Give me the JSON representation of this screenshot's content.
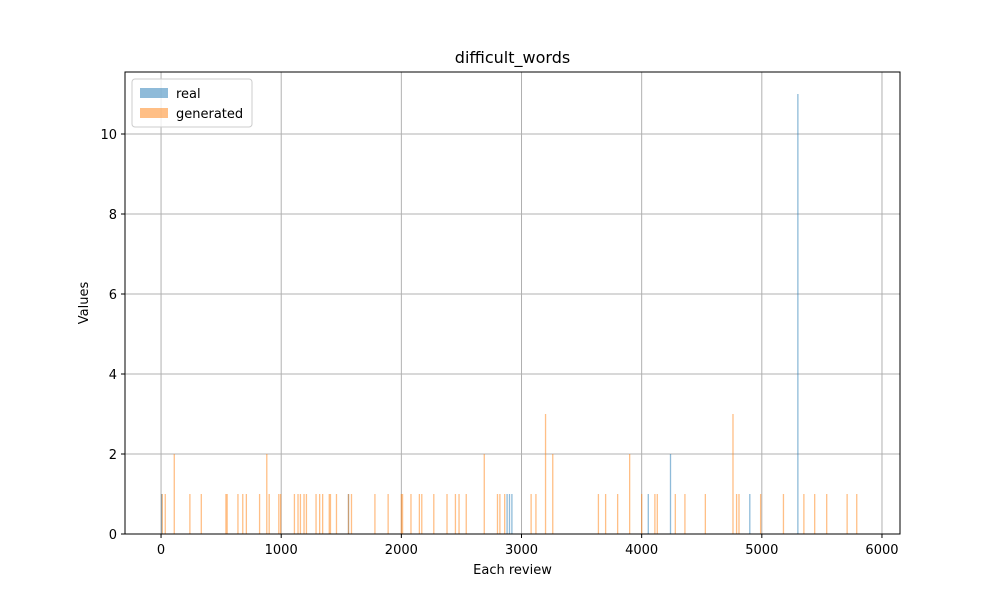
{
  "chart_data": {
    "type": "bar",
    "title": "difficult_words",
    "xlabel": "Each review",
    "ylabel": "Values",
    "xlim": [
      -300,
      6150
    ],
    "ylim": [
      0,
      11.55
    ],
    "xticks": [
      0,
      1000,
      2000,
      3000,
      4000,
      5000,
      6000
    ],
    "yticks": [
      0,
      2,
      4,
      6,
      8,
      10
    ],
    "grid": true,
    "legend_position": "top-left",
    "series": [
      {
        "name": "real",
        "color": "#1f77b4",
        "points": [
          {
            "x": 5,
            "y": 1
          },
          {
            "x": 1560,
            "y": 1
          },
          {
            "x": 2880,
            "y": 1
          },
          {
            "x": 2900,
            "y": 1
          },
          {
            "x": 2920,
            "y": 1
          },
          {
            "x": 4055,
            "y": 1
          },
          {
            "x": 4240,
            "y": 2
          },
          {
            "x": 4900,
            "y": 1
          },
          {
            "x": 5300,
            "y": 11
          }
        ]
      },
      {
        "name": "generated",
        "color": "#ff7f0e",
        "points": [
          {
            "x": 10,
            "y": 1
          },
          {
            "x": 35,
            "y": 1
          },
          {
            "x": 110,
            "y": 2
          },
          {
            "x": 240,
            "y": 1
          },
          {
            "x": 335,
            "y": 1
          },
          {
            "x": 540,
            "y": 1
          },
          {
            "x": 550,
            "y": 1
          },
          {
            "x": 640,
            "y": 1
          },
          {
            "x": 680,
            "y": 1
          },
          {
            "x": 710,
            "y": 1
          },
          {
            "x": 820,
            "y": 1
          },
          {
            "x": 880,
            "y": 2
          },
          {
            "x": 900,
            "y": 1
          },
          {
            "x": 980,
            "y": 1
          },
          {
            "x": 995,
            "y": 1
          },
          {
            "x": 1110,
            "y": 1
          },
          {
            "x": 1140,
            "y": 1
          },
          {
            "x": 1160,
            "y": 1
          },
          {
            "x": 1190,
            "y": 1
          },
          {
            "x": 1210,
            "y": 1
          },
          {
            "x": 1290,
            "y": 1
          },
          {
            "x": 1320,
            "y": 1
          },
          {
            "x": 1345,
            "y": 1
          },
          {
            "x": 1400,
            "y": 1
          },
          {
            "x": 1410,
            "y": 1
          },
          {
            "x": 1460,
            "y": 1
          },
          {
            "x": 1560,
            "y": 1
          },
          {
            "x": 1585,
            "y": 1
          },
          {
            "x": 1780,
            "y": 1
          },
          {
            "x": 1890,
            "y": 1
          },
          {
            "x": 2000,
            "y": 1
          },
          {
            "x": 2010,
            "y": 1
          },
          {
            "x": 2080,
            "y": 1
          },
          {
            "x": 2150,
            "y": 1
          },
          {
            "x": 2170,
            "y": 1
          },
          {
            "x": 2270,
            "y": 1
          },
          {
            "x": 2380,
            "y": 1
          },
          {
            "x": 2450,
            "y": 1
          },
          {
            "x": 2480,
            "y": 1
          },
          {
            "x": 2540,
            "y": 1
          },
          {
            "x": 2690,
            "y": 2
          },
          {
            "x": 2800,
            "y": 1
          },
          {
            "x": 2820,
            "y": 1
          },
          {
            "x": 2860,
            "y": 1
          },
          {
            "x": 3080,
            "y": 1
          },
          {
            "x": 3120,
            "y": 1
          },
          {
            "x": 3200,
            "y": 3
          },
          {
            "x": 3260,
            "y": 2
          },
          {
            "x": 3640,
            "y": 1
          },
          {
            "x": 3700,
            "y": 1
          },
          {
            "x": 3800,
            "y": 1
          },
          {
            "x": 3900,
            "y": 2
          },
          {
            "x": 4000,
            "y": 1
          },
          {
            "x": 4110,
            "y": 1
          },
          {
            "x": 4130,
            "y": 1
          },
          {
            "x": 4280,
            "y": 1
          },
          {
            "x": 4360,
            "y": 1
          },
          {
            "x": 4530,
            "y": 1
          },
          {
            "x": 4760,
            "y": 3
          },
          {
            "x": 4790,
            "y": 1
          },
          {
            "x": 4810,
            "y": 1
          },
          {
            "x": 4990,
            "y": 1
          },
          {
            "x": 5180,
            "y": 1
          },
          {
            "x": 5350,
            "y": 1
          },
          {
            "x": 5440,
            "y": 1
          },
          {
            "x": 5540,
            "y": 1
          },
          {
            "x": 5710,
            "y": 1
          },
          {
            "x": 5790,
            "y": 1
          }
        ]
      }
    ]
  }
}
